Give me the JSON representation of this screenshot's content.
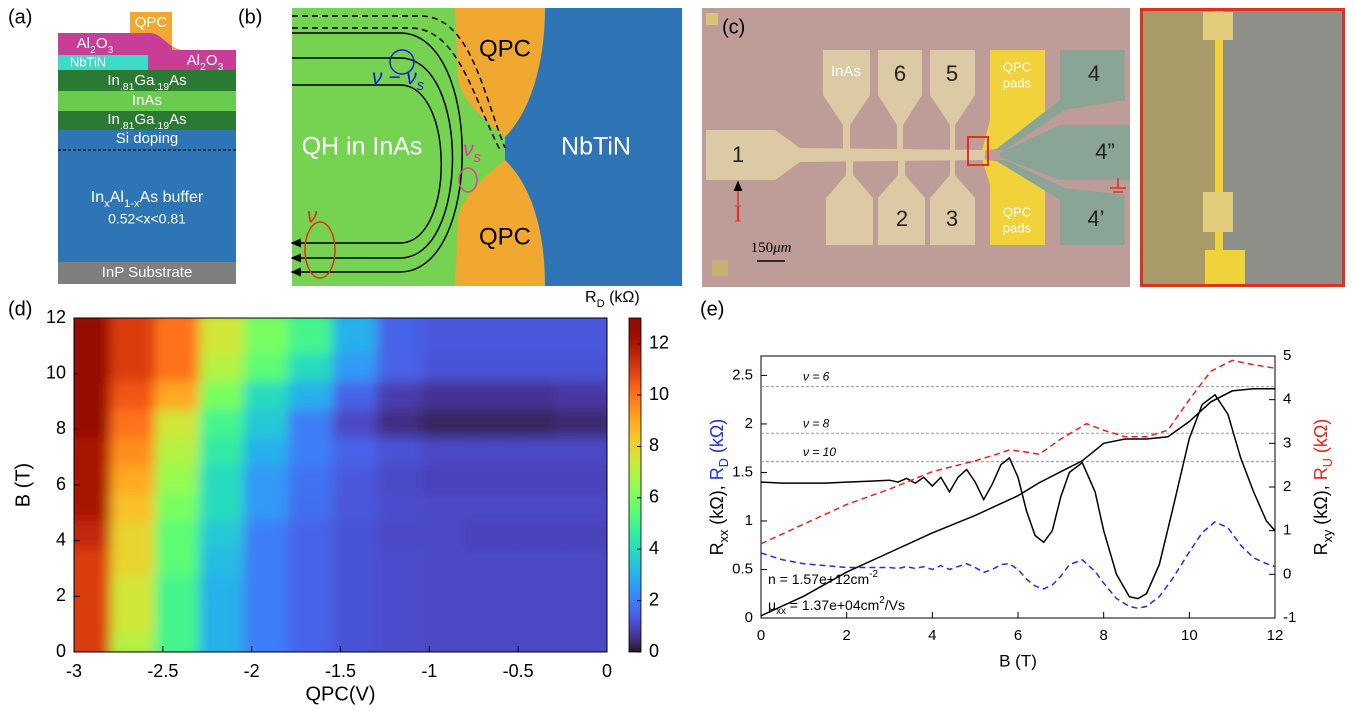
{
  "panel_a": {
    "label": "(a)",
    "qpc": "QPC",
    "al2o3_left": [
      {
        "text": "Al"
      },
      {
        "text": "2",
        "style": "sub"
      },
      {
        "text": "O"
      },
      {
        "text": "3",
        "style": "sub"
      }
    ],
    "al2o3_right": [
      {
        "text": "Al"
      },
      {
        "text": "2",
        "style": "sub"
      },
      {
        "text": "O"
      },
      {
        "text": "3",
        "style": "sub"
      }
    ],
    "nbtin": "NbTiN",
    "ingaas_top": [
      {
        "text": "In"
      },
      {
        "text": ".81",
        "style": "sub"
      },
      {
        "text": "Ga"
      },
      {
        "text": ".19",
        "style": "sub"
      },
      {
        "text": "As"
      }
    ],
    "inas": "InAs",
    "ingaas_bottom": [
      {
        "text": "In"
      },
      {
        "text": ".81",
        "style": "sub"
      },
      {
        "text": "Ga"
      },
      {
        "text": ".19",
        "style": "sub"
      },
      {
        "text": "As"
      }
    ],
    "si_doping": "Si doping",
    "buffer": [
      {
        "text": "In"
      },
      {
        "text": "x",
        "style": "sub"
      },
      {
        "text": "Al"
      },
      {
        "text": "1-x",
        "style": "sub"
      },
      {
        "text": "As buffer"
      }
    ],
    "buffer_range": "0.52<x<0.81",
    "substrate": "InP Substrate"
  },
  "panel_b": {
    "label": "(b)",
    "qpc_top": "QPC",
    "qpc_bottom": "QPC",
    "qh_region": "QH in InAs",
    "nbtin": "NbTiN",
    "nu_minus_nus": [
      {
        "text": "ν − ν"
      },
      {
        "text": "s",
        "style": "sub"
      }
    ],
    "nus": [
      {
        "text": "ν"
      },
      {
        "text": "s",
        "style": "sub"
      }
    ],
    "nu": "ν"
  },
  "panel_c": {
    "label": "(c)",
    "inas": "InAs",
    "pad_6": "6",
    "pad_5": "5",
    "qpc_pads_top": {
      "line1": "QPC",
      "line2": "pads"
    },
    "pad_4": "4",
    "pad_1": "1",
    "pad_4pp": "4”",
    "pad_2": "2",
    "pad_3": "3",
    "qpc_pads_bottom": {
      "line1": "QPC",
      "line2": "pads"
    },
    "pad_4p": "4’",
    "current": "I",
    "scale_bar": [
      {
        "text": "150"
      },
      {
        "text": "μm",
        "style": "italic"
      }
    ]
  },
  "chart_data": [
    {
      "type": "heatmap",
      "panel_label": "(d)",
      "xlabel": "QPC(V)",
      "ylabel": "B (T)",
      "colorbar_label": [
        {
          "text": "R"
        },
        {
          "text": "D",
          "style": "sub"
        },
        {
          "text": " (kΩ)"
        }
      ],
      "xlim": [
        -3,
        0
      ],
      "xticks": [
        -3,
        -2.5,
        -2,
        -1.5,
        -1,
        -0.5,
        0
      ],
      "ylim": [
        0,
        12
      ],
      "yticks": [
        0,
        2,
        4,
        6,
        8,
        10,
        12
      ],
      "clim": [
        0,
        13
      ],
      "cticks": [
        0,
        2,
        4,
        6,
        8,
        10,
        12
      ],
      "colormap": "turbo",
      "x": [
        -2.875,
        -2.625,
        -2.375,
        -2.125,
        -1.875,
        -1.625,
        -1.375,
        -1.125,
        -0.875,
        -0.625,
        -0.375,
        -0.125
      ],
      "y": [
        0.5,
        1.5,
        2.5,
        3.5,
        4.5,
        5.5,
        6.5,
        7.5,
        8.5,
        9.5,
        10.5,
        11.5
      ],
      "z": [
        [
          11,
          7,
          5,
          3,
          2,
          1.5,
          1.2,
          1.1,
          1,
          1,
          1,
          1
        ],
        [
          11,
          7.5,
          5,
          3,
          2,
          1.5,
          1.2,
          1.1,
          1,
          1,
          1,
          1
        ],
        [
          11,
          7.5,
          5,
          3,
          2,
          1.5,
          1.2,
          1.1,
          1,
          1,
          1,
          1
        ],
        [
          11,
          8,
          5.5,
          3.2,
          2,
          1.5,
          1.2,
          1.1,
          1,
          1,
          1,
          1
        ],
        [
          11.5,
          8,
          5.5,
          3.5,
          2,
          1.5,
          1.2,
          1,
          1,
          0.9,
          0.9,
          0.9
        ],
        [
          12,
          8.5,
          6,
          4,
          2.5,
          1.7,
          1.3,
          1.1,
          1,
          1,
          1,
          1
        ],
        [
          12,
          9,
          6.5,
          4,
          2.5,
          1.8,
          1.3,
          1,
          0.9,
          0.9,
          0.9,
          0.9
        ],
        [
          12,
          9.5,
          7,
          4.5,
          3,
          2,
          1.5,
          1.2,
          1,
          1,
          1,
          1
        ],
        [
          12.5,
          10,
          7.5,
          5,
          3.5,
          2,
          1,
          0.5,
          0.3,
          0.3,
          0.3,
          0.4
        ],
        [
          12.5,
          10.5,
          9,
          6,
          4,
          3,
          1.5,
          0.8,
          0.6,
          0.6,
          0.6,
          0.7
        ],
        [
          12.5,
          11,
          10,
          7,
          5.5,
          4,
          2.5,
          1.5,
          1.2,
          1.2,
          1.2,
          1.2
        ],
        [
          12.5,
          11,
          10,
          7.5,
          6,
          5,
          3,
          1.5,
          1.3,
          1.3,
          1.3,
          1.3
        ]
      ]
    },
    {
      "type": "line",
      "panel_label": "(e)",
      "xlabel": "B (T)",
      "ylabel": [
        {
          "text": "R",
          "color": "#000000"
        },
        {
          "text": "xx",
          "style": "sub",
          "color": "#000000"
        },
        {
          "text": " (kΩ), ",
          "color": "#000000"
        },
        {
          "text": "R",
          "color": "#1f2fe0"
        },
        {
          "text": "D",
          "style": "sub",
          "color": "#1f2fe0"
        },
        {
          "text": " (kΩ)",
          "color": "#1f2fe0"
        }
      ],
      "y2label": [
        {
          "text": "R",
          "color": "#000000"
        },
        {
          "text": "xy",
          "style": "sub",
          "color": "#000000"
        },
        {
          "text": " (kΩ), ",
          "color": "#000000"
        },
        {
          "text": "R",
          "color": "#e8221b"
        },
        {
          "text": "U",
          "style": "sub",
          "color": "#e8221b"
        },
        {
          "text": " (kΩ)",
          "color": "#e8221b"
        }
      ],
      "xlim": [
        0,
        12
      ],
      "xticks": [
        0,
        2,
        4,
        6,
        8,
        10,
        12
      ],
      "ylim": [
        0,
        2.7
      ],
      "yticks": [
        0,
        0.5,
        1,
        1.5,
        2,
        2.5
      ],
      "y2lim": [
        -1,
        5
      ],
      "y2ticks": [
        -1,
        0,
        1,
        2,
        3,
        4,
        5
      ],
      "series": [
        {
          "color": "#000000",
          "dash": false,
          "axis": "y",
          "x": [
            0,
            0.5,
            1,
            1.5,
            2,
            2.5,
            3,
            3.2,
            3.4,
            3.6,
            3.8,
            4,
            4.2,
            4.4,
            4.6,
            4.8,
            5,
            5.2,
            5.4,
            5.6,
            5.8,
            6,
            6.2,
            6.4,
            6.6,
            6.8,
            7,
            7.2,
            7.5,
            7.8,
            8,
            8.3,
            8.6,
            8.8,
            9,
            9.3,
            9.6,
            10,
            10.3,
            10.6,
            10.9,
            11.2,
            11.5,
            11.8,
            12
          ],
          "values": [
            1.4,
            1.39,
            1.39,
            1.39,
            1.4,
            1.41,
            1.42,
            1.4,
            1.44,
            1.39,
            1.45,
            1.36,
            1.45,
            1.3,
            1.45,
            1.53,
            1.4,
            1.22,
            1.38,
            1.58,
            1.65,
            1.45,
            1.1,
            0.85,
            0.78,
            0.9,
            1.25,
            1.5,
            1.6,
            1.3,
            0.9,
            0.45,
            0.22,
            0.2,
            0.25,
            0.55,
            1.1,
            1.85,
            2.2,
            2.3,
            2.1,
            1.65,
            1.3,
            1,
            0.9
          ]
        },
        {
          "color": "#1f2fe0",
          "dash": true,
          "axis": "y",
          "x": [
            0,
            0.5,
            1,
            1.5,
            2,
            2.5,
            3,
            3.2,
            3.4,
            3.6,
            3.8,
            4,
            4.2,
            4.4,
            4.6,
            4.8,
            5,
            5.2,
            5.4,
            5.6,
            5.8,
            6,
            6.2,
            6.4,
            6.6,
            6.8,
            7,
            7.2,
            7.5,
            7.8,
            8,
            8.3,
            8.6,
            8.8,
            9,
            9.3,
            9.6,
            10,
            10.3,
            10.6,
            10.9,
            11.2,
            11.5,
            11.8,
            12
          ],
          "values": [
            0.67,
            0.6,
            0.56,
            0.54,
            0.52,
            0.52,
            0.52,
            0.51,
            0.53,
            0.51,
            0.53,
            0.5,
            0.54,
            0.5,
            0.53,
            0.56,
            0.52,
            0.47,
            0.5,
            0.55,
            0.56,
            0.5,
            0.4,
            0.33,
            0.3,
            0.34,
            0.43,
            0.55,
            0.6,
            0.48,
            0.36,
            0.2,
            0.12,
            0.1,
            0.12,
            0.22,
            0.4,
            0.68,
            0.88,
            0.99,
            0.93,
            0.75,
            0.62,
            0.56,
            0.53
          ]
        },
        {
          "color": "#000000",
          "dash": false,
          "axis": "y2",
          "x": [
            0,
            1,
            2,
            3,
            4,
            5,
            6,
            6.5,
            7,
            7.5,
            8,
            8.5,
            9,
            9.5,
            10,
            10.5,
            11,
            11.5,
            12
          ],
          "values": [
            -0.95,
            -0.5,
            0.05,
            0.5,
            0.95,
            1.35,
            1.8,
            2.1,
            2.35,
            2.6,
            3,
            3.1,
            3.1,
            3.15,
            3.5,
            3.95,
            4.2,
            4.25,
            4.25
          ]
        },
        {
          "color": "#e8221b",
          "dash": true,
          "axis": "y2",
          "x": [
            0,
            1,
            2,
            3,
            4,
            5,
            5.5,
            5.8,
            6.2,
            6.5,
            7,
            7.6,
            8,
            8.5,
            9,
            9.5,
            10,
            10.5,
            11,
            11.5,
            12
          ],
          "values": [
            0.7,
            1.15,
            1.6,
            1.95,
            2.35,
            2.6,
            2.75,
            2.85,
            2.8,
            2.75,
            3.1,
            3.45,
            3.3,
            3.15,
            3.15,
            3.3,
            4,
            4.65,
            4.9,
            4.8,
            4.72
          ]
        }
      ],
      "reference_lines": [
        {
          "value": 4.3,
          "axis": "y2",
          "label": "ν = 6"
        },
        {
          "value": 3.23,
          "axis": "y2",
          "label": "ν = 8"
        },
        {
          "value": 2.58,
          "axis": "y2",
          "label": "ν = 10"
        }
      ],
      "annotations": [
        [
          {
            "text": "n = 1.57e+12cm"
          },
          {
            "text": "-2",
            "style": "sup"
          }
        ],
        [
          {
            "text": "μ"
          },
          {
            "text": "xx",
            "style": "sub"
          },
          {
            "text": " = 1.37e+04cm"
          },
          {
            "text": "2",
            "style": "sup"
          },
          {
            "text": "/Vs"
          }
        ]
      ]
    }
  ]
}
